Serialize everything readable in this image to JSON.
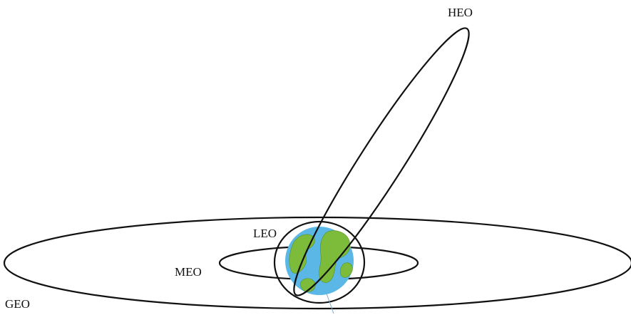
{
  "diagram": {
    "labels": {
      "heo": "HEO",
      "leo": "LEO",
      "meo": "MEO",
      "geo": "GEO"
    },
    "colors": {
      "orbit_line": "#111111",
      "earth_ocean": "#5bb8e6",
      "earth_land": "#7dbb3a",
      "background": "#ffffff"
    },
    "icons": {
      "earth": "earth-globe-icon"
    }
  }
}
